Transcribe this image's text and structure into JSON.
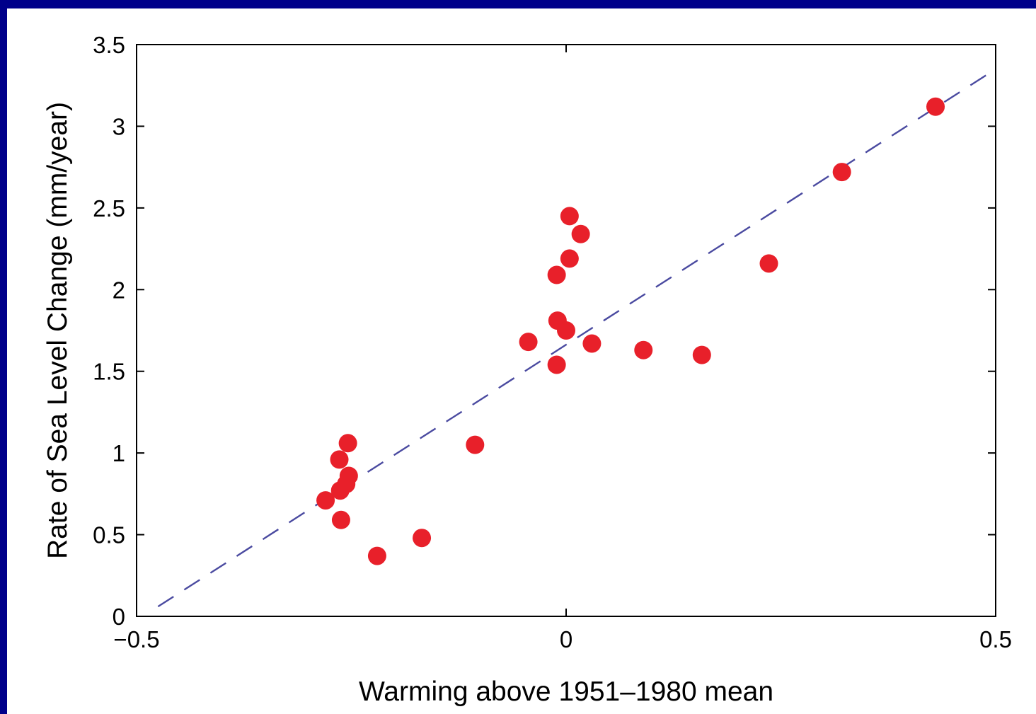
{
  "chart_data": {
    "type": "scatter",
    "title": "",
    "xlabel": "Warming above 1951–1980 mean",
    "ylabel": "Rate of Sea Level Change (mm/year)",
    "xlim": [
      -0.5,
      0.5
    ],
    "ylim": [
      0,
      3.5
    ],
    "x_ticks": [
      -0.5,
      0,
      0.5
    ],
    "x_tick_labels": [
      "−0.5",
      "0",
      "0.5"
    ],
    "y_ticks": [
      0,
      0.5,
      1,
      1.5,
      2,
      2.5,
      3,
      3.5
    ],
    "y_tick_labels": [
      "0",
      "0.5",
      "1",
      "1.5",
      "2",
      "2.5",
      "3",
      "3.5"
    ],
    "grid": false,
    "points": {
      "color": "#e8202a",
      "x": [
        -0.28,
        -0.262,
        -0.256,
        -0.253,
        -0.264,
        -0.254,
        -0.263,
        -0.22,
        -0.168,
        -0.106,
        -0.044,
        -0.011,
        -0.01,
        -0.011,
        0.004,
        0.0,
        0.004,
        0.017,
        0.03,
        0.09,
        0.158,
        0.236,
        0.321,
        0.43
      ],
      "y": [
        0.71,
        0.59,
        0.81,
        0.86,
        0.96,
        1.06,
        0.77,
        0.37,
        0.48,
        1.05,
        1.68,
        1.54,
        1.81,
        2.09,
        2.45,
        1.75,
        2.19,
        2.34,
        1.67,
        1.63,
        1.6,
        2.16,
        2.72,
        3.12
      ]
    },
    "fit_line": {
      "style": "dashed",
      "color": "#4a4aa0",
      "x": [
        -0.475,
        0.5
      ],
      "y": [
        0.06,
        3.35
      ]
    }
  }
}
